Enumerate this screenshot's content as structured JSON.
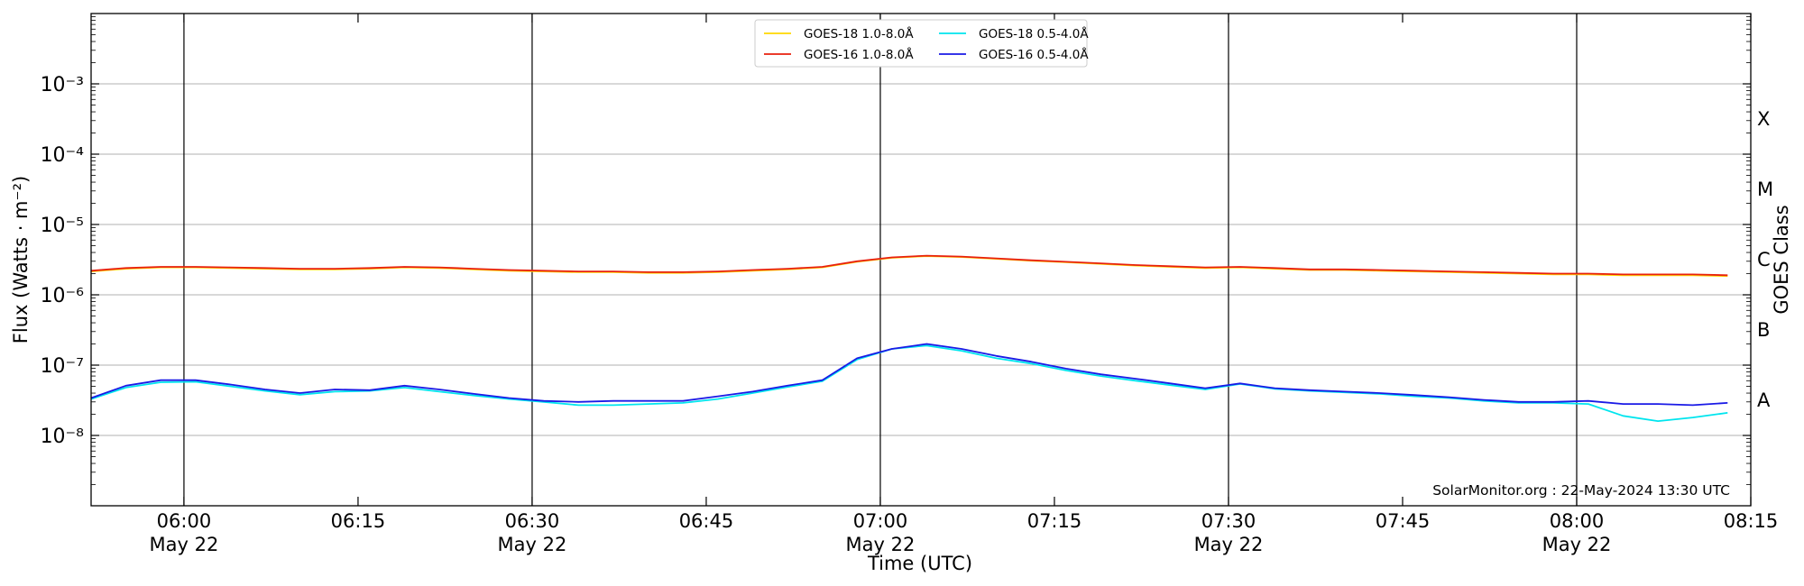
{
  "chart_data": {
    "type": "line",
    "xlabel": "Time (UTC)",
    "ylabel": "Flux (Watts · m⁻²)",
    "y2label": "GOES Class",
    "annotation": "SolarMonitor.org : 22-May-2024 13:30 UTC",
    "log_y": true,
    "grid": true,
    "legend": "upper center",
    "xlim": [
      "05:52",
      "08:15"
    ],
    "xticks": [
      {
        "value": "06:00",
        "label": "06:00",
        "date": "May 22"
      },
      {
        "value": "06:15",
        "label": "06:15"
      },
      {
        "value": "06:30",
        "label": "06:30",
        "date": "May 22"
      },
      {
        "value": "06:45",
        "label": "06:45"
      },
      {
        "value": "07:00",
        "label": "07:00",
        "date": "May 22"
      },
      {
        "value": "07:15",
        "label": "07:15"
      },
      {
        "value": "07:30",
        "label": "07:30",
        "date": "May 22"
      },
      {
        "value": "07:45",
        "label": "07:45"
      },
      {
        "value": "08:00",
        "label": "08:00",
        "date": "May 22"
      },
      {
        "value": "08:15",
        "label": "08:15"
      }
    ],
    "vlines": [
      "06:00",
      "06:30",
      "07:00",
      "07:30",
      "08:00"
    ],
    "ylim": [
      1e-09,
      0.01
    ],
    "yticks": [
      {
        "value": 1e-08,
        "label": "10⁻⁸"
      },
      {
        "value": 1e-07,
        "label": "10⁻⁷"
      },
      {
        "value": 1e-06,
        "label": "10⁻⁶"
      },
      {
        "value": 1e-05,
        "label": "10⁻⁵"
      },
      {
        "value": 0.0001,
        "label": "10⁻⁴"
      },
      {
        "value": 0.001,
        "label": "10⁻³"
      }
    ],
    "y2lim": [
      1e-09,
      0.01
    ],
    "y2ticks": [
      {
        "value": 3.162e-08,
        "label": "A"
      },
      {
        "value": 3.162e-07,
        "label": "B"
      },
      {
        "value": 3.162e-06,
        "label": "C"
      },
      {
        "value": 3.162e-05,
        "label": "M"
      },
      {
        "value": 0.0003162,
        "label": "X"
      }
    ],
    "x": [
      "05:52",
      "05:55",
      "05:58",
      "06:01",
      "06:04",
      "06:07",
      "06:10",
      "06:13",
      "06:16",
      "06:19",
      "06:22",
      "06:25",
      "06:28",
      "06:31",
      "06:34",
      "06:37",
      "06:40",
      "06:43",
      "06:46",
      "06:49",
      "06:52",
      "06:55",
      "06:58",
      "07:01",
      "07:04",
      "07:07",
      "07:10",
      "07:13",
      "07:16",
      "07:19",
      "07:22",
      "07:25",
      "07:28",
      "07:31",
      "07:34",
      "07:37",
      "07:40",
      "07:43",
      "07:46",
      "07:49",
      "07:52",
      "07:55",
      "07:58",
      "08:01",
      "08:04",
      "08:07",
      "08:10",
      "08:13"
    ],
    "series": [
      {
        "name": "GOES-18 1.0-8.0Å",
        "color": "#ffd700",
        "values": [
          2.15e-06,
          2.35e-06,
          2.45e-06,
          2.45e-06,
          2.4e-06,
          2.35e-06,
          2.3e-06,
          2.3e-06,
          2.35e-06,
          2.45e-06,
          2.4e-06,
          2.3e-06,
          2.2e-06,
          2.15e-06,
          2.1e-06,
          2.1e-06,
          2.05e-06,
          2.05e-06,
          2.1e-06,
          2.2e-06,
          2.3e-06,
          2.45e-06,
          2.95e-06,
          3.35e-06,
          3.55e-06,
          3.45e-06,
          3.25e-06,
          3.05e-06,
          2.9e-06,
          2.75e-06,
          2.6e-06,
          2.5e-06,
          2.4e-06,
          2.45e-06,
          2.35e-06,
          2.25e-06,
          2.25e-06,
          2.2e-06,
          2.15e-06,
          2.1e-06,
          2.05e-06,
          2e-06,
          1.95e-06,
          1.95e-06,
          1.9e-06,
          1.9e-06,
          1.9e-06,
          1.85e-06
        ]
      },
      {
        "name": "GOES-16 1.0-8.0Å",
        "color": "#e8210e",
        "values": [
          2.2e-06,
          2.4e-06,
          2.5e-06,
          2.5e-06,
          2.45e-06,
          2.4e-06,
          2.35e-06,
          2.35e-06,
          2.4e-06,
          2.5e-06,
          2.45e-06,
          2.35e-06,
          2.25e-06,
          2.2e-06,
          2.15e-06,
          2.15e-06,
          2.1e-06,
          2.1e-06,
          2.15e-06,
          2.25e-06,
          2.35e-06,
          2.5e-06,
          3e-06,
          3.4e-06,
          3.6e-06,
          3.5e-06,
          3.3e-06,
          3.1e-06,
          2.95e-06,
          2.8e-06,
          2.65e-06,
          2.55e-06,
          2.45e-06,
          2.5e-06,
          2.4e-06,
          2.3e-06,
          2.3e-06,
          2.25e-06,
          2.2e-06,
          2.15e-06,
          2.1e-06,
          2.05e-06,
          2e-06,
          2e-06,
          1.95e-06,
          1.95e-06,
          1.95e-06,
          1.9e-06
        ]
      },
      {
        "name": "GOES-18 0.5-4.0Å",
        "color": "#00e5ee",
        "values": [
          3.3e-08,
          4.8e-08,
          5.7e-08,
          5.8e-08,
          5e-08,
          4.3e-08,
          3.8e-08,
          4.2e-08,
          4.3e-08,
          4.8e-08,
          4.2e-08,
          3.7e-08,
          3.3e-08,
          3e-08,
          2.7e-08,
          2.7e-08,
          2.8e-08,
          2.9e-08,
          3.3e-08,
          4e-08,
          4.9e-08,
          5.9e-08,
          1.2e-07,
          1.7e-07,
          1.9e-07,
          1.6e-07,
          1.25e-07,
          1.05e-07,
          8.4e-08,
          7e-08,
          6e-08,
          5.2e-08,
          4.5e-08,
          5.4e-08,
          4.6e-08,
          4.3e-08,
          4.1e-08,
          3.9e-08,
          3.6e-08,
          3.4e-08,
          3.1e-08,
          2.9e-08,
          2.9e-08,
          2.8e-08,
          1.9e-08,
          1.6e-08,
          1.8e-08,
          2.1e-08
        ]
      },
      {
        "name": "GOES-16 0.5-4.0Å",
        "color": "#1a1ae6",
        "values": [
          3.4e-08,
          5.1e-08,
          6.1e-08,
          6.1e-08,
          5.3e-08,
          4.5e-08,
          4e-08,
          4.5e-08,
          4.4e-08,
          5.1e-08,
          4.5e-08,
          3.9e-08,
          3.4e-08,
          3.1e-08,
          3e-08,
          3.1e-08,
          3.1e-08,
          3.1e-08,
          3.6e-08,
          4.2e-08,
          5.1e-08,
          6.1e-08,
          1.25e-07,
          1.7e-07,
          2e-07,
          1.7e-07,
          1.35e-07,
          1.12e-07,
          8.9e-08,
          7.4e-08,
          6.4e-08,
          5.5e-08,
          4.7e-08,
          5.5e-08,
          4.7e-08,
          4.4e-08,
          4.2e-08,
          4e-08,
          3.75e-08,
          3.5e-08,
          3.2e-08,
          3e-08,
          3e-08,
          3.1e-08,
          2.8e-08,
          2.8e-08,
          2.7e-08,
          2.9e-08
        ]
      }
    ]
  }
}
